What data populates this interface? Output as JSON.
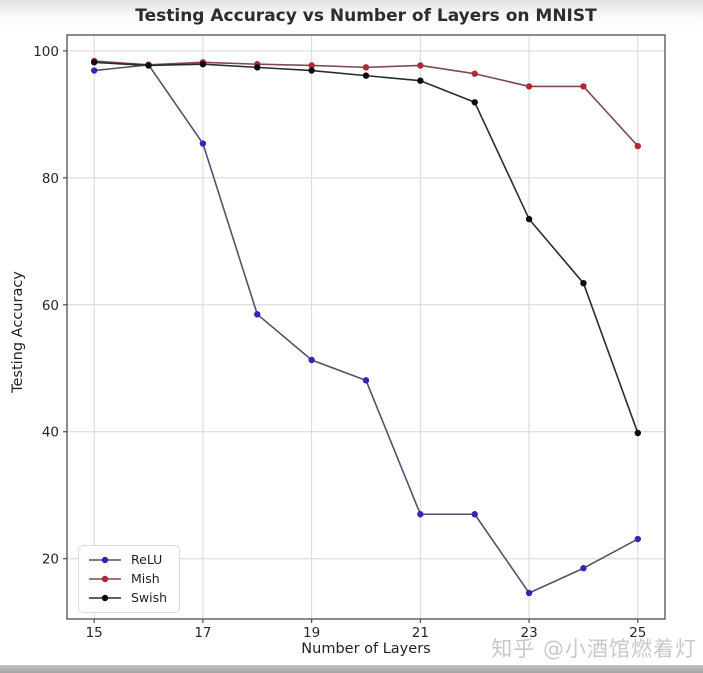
{
  "watermark": "知乎 @小酒馆燃着灯",
  "chart_data": {
    "type": "line",
    "title": "Testing Accuracy vs Number of Layers on MNIST",
    "xlabel": "Number of Layers",
    "ylabel": "Testing Accuracy",
    "x": [
      15,
      16,
      17,
      18,
      19,
      20,
      21,
      22,
      23,
      24,
      25
    ],
    "series": [
      {
        "name": "ReLU",
        "marker_color": "#2f28b4",
        "line_color": "#52526e",
        "values": [
          96.9,
          97.8,
          85.4,
          58.5,
          51.3,
          48.1,
          27.0,
          27.0,
          14.6,
          18.5,
          23.1
        ]
      },
      {
        "name": "Mish",
        "marker_color": "#b02838",
        "line_color": "#7e4a50",
        "values": [
          98.4,
          97.8,
          98.2,
          97.9,
          97.7,
          97.4,
          97.7,
          96.4,
          94.4,
          94.4,
          85.0
        ]
      },
      {
        "name": "Swish",
        "marker_color": "#0d0d0d",
        "line_color": "#2c2c2c",
        "values": [
          98.2,
          97.7,
          97.9,
          97.4,
          96.9,
          96.1,
          95.3,
          91.9,
          73.5,
          63.4,
          39.8
        ]
      }
    ],
    "xticks": [
      15,
      17,
      19,
      21,
      23,
      25
    ],
    "yticks": [
      20,
      40,
      60,
      80,
      100
    ],
    "xlim": [
      14.5,
      25.5
    ],
    "ylim": [
      10.5,
      102.5
    ],
    "grid": true,
    "legend_position": "lower left",
    "style": {
      "grid_color": "#d6d6d6",
      "spine_color": "#4d4d4d",
      "tick_color": "#4d4d4d",
      "marker_radius": 3.2,
      "line_width": 1.6
    }
  }
}
